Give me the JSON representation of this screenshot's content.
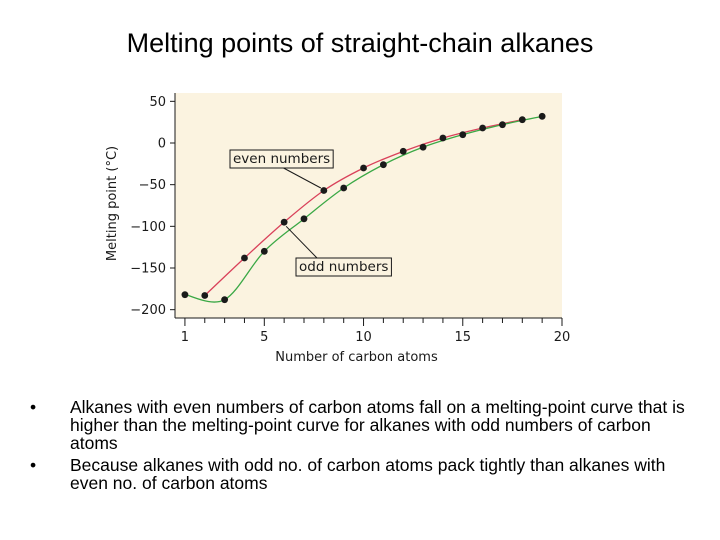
{
  "slide": {
    "title": "Melting points of straight-chain alkanes",
    "bullets": [
      "Alkanes with even numbers of carbon atoms fall on a melting-point curve that is higher than the melting-point curve for alkanes with odd numbers of carbon atoms",
      "Because alkanes with odd no. of carbon atoms pack tightly than alkanes with even no. of carbon atoms"
    ],
    "bullet_char": "•"
  },
  "chart_data": {
    "type": "scatter",
    "title": "",
    "xlabel": "Number of carbon atoms",
    "ylabel": "Melting point (°C)",
    "xlim": [
      0.5,
      20
    ],
    "ylim": [
      -210,
      60
    ],
    "x_ticks": [
      1,
      5,
      10,
      15,
      20
    ],
    "y_ticks": [
      50,
      0,
      -50,
      -100,
      -150,
      -200
    ],
    "y_tick_labels": [
      "50",
      "0",
      "−50",
      "−100",
      "−150",
      "−200"
    ],
    "background": "#fbf3e0",
    "series": [
      {
        "name": "even numbers",
        "color": "#d9415a",
        "x": [
          2,
          4,
          6,
          8,
          10,
          12,
          14,
          16,
          18
        ],
        "y": [
          -183,
          -138,
          -95,
          -57,
          -30,
          -10,
          6,
          18,
          28
        ]
      },
      {
        "name": "odd numbers",
        "color": "#3aa845",
        "x": [
          1,
          3,
          5,
          7,
          9,
          11,
          13,
          15,
          17,
          19
        ],
        "y": [
          -182,
          -188,
          -130,
          -91,
          -54,
          -26,
          -5,
          10,
          22,
          32
        ]
      }
    ],
    "annotations": [
      "even numbers",
      "odd numbers"
    ],
    "point_color": "#1a1a1a"
  }
}
